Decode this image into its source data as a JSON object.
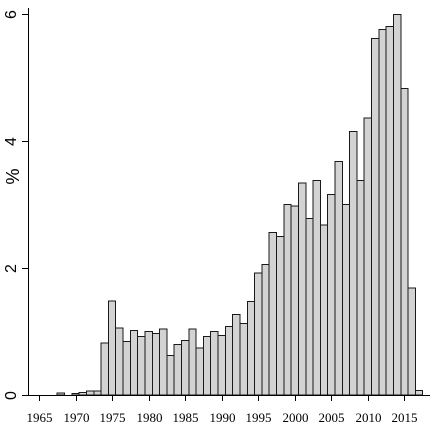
{
  "chart_data": {
    "type": "bar",
    "title": "",
    "xlabel": "",
    "ylabel": "%",
    "ylim": [
      0,
      6.1
    ],
    "xlim": [
      1963.5,
      2018.5
    ],
    "grid": false,
    "legend": "none",
    "bar_fill": "#d3d3d3",
    "bar_edge": "#1a1a1a",
    "x_ticks": [
      1965,
      1970,
      1975,
      1980,
      1985,
      1990,
      1995,
      2000,
      2005,
      2010,
      2015
    ],
    "x_tick_labels": [
      "1965",
      "1970",
      "1975",
      "1980",
      "1985",
      "1990",
      "1995",
      "2000",
      "2005",
      "2010",
      "2015"
    ],
    "y_ticks": [
      0,
      2,
      4,
      6
    ],
    "y_tick_labels": [
      "0",
      "2",
      "4",
      "6"
    ],
    "x": [
      1968,
      1970,
      1971,
      1972,
      1973,
      1974,
      1975,
      1976,
      1977,
      1978,
      1979,
      1980,
      1981,
      1982,
      1983,
      1984,
      1985,
      1986,
      1987,
      1988,
      1989,
      1990,
      1991,
      1992,
      1993,
      1994,
      1995,
      1996,
      1997,
      1998,
      1999,
      2000,
      2001,
      2002,
      2003,
      2004,
      2005,
      2006,
      2007,
      2008,
      2009,
      2010,
      2011,
      2012,
      2013,
      2014,
      2015,
      2016,
      2017
    ],
    "values": [
      0.03,
      0.02,
      0.04,
      0.06,
      0.06,
      0.82,
      1.48,
      1.06,
      0.84,
      1.02,
      0.92,
      1.0,
      0.97,
      1.04,
      0.62,
      0.8,
      0.86,
      1.04,
      0.74,
      0.92,
      1.0,
      0.94,
      1.08,
      1.27,
      1.13,
      1.47,
      1.92,
      2.06,
      2.56,
      2.5,
      3.0,
      2.98,
      3.34,
      2.78,
      3.38,
      2.68,
      3.16,
      3.68,
      3.0,
      4.15,
      3.38,
      4.37,
      5.62,
      5.76,
      5.81,
      6.0,
      4.83,
      1.69,
      0.07
    ]
  }
}
